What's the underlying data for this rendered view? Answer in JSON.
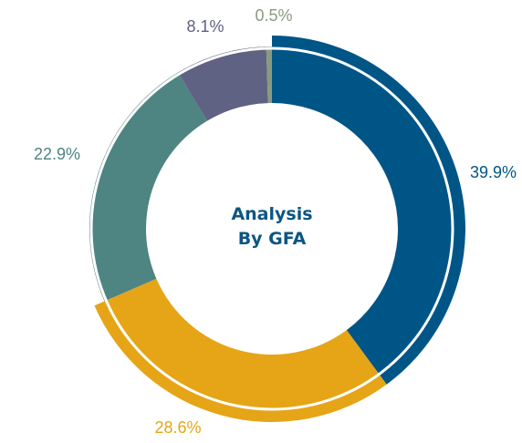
{
  "chart_data": {
    "type": "donut",
    "title": "Analysis By GFA",
    "categories": [
      null,
      null,
      null,
      null,
      null
    ],
    "values": [
      39.9,
      28.6,
      22.9,
      8.1,
      0.5
    ],
    "value_labels": [
      "39.9%",
      "28.6%",
      "22.9%",
      "8.1%",
      "0.5%"
    ],
    "colors": [
      "#005587",
      "#e5a517",
      "#4e8482",
      "#5f6282",
      "#8a9a7f"
    ]
  }
}
